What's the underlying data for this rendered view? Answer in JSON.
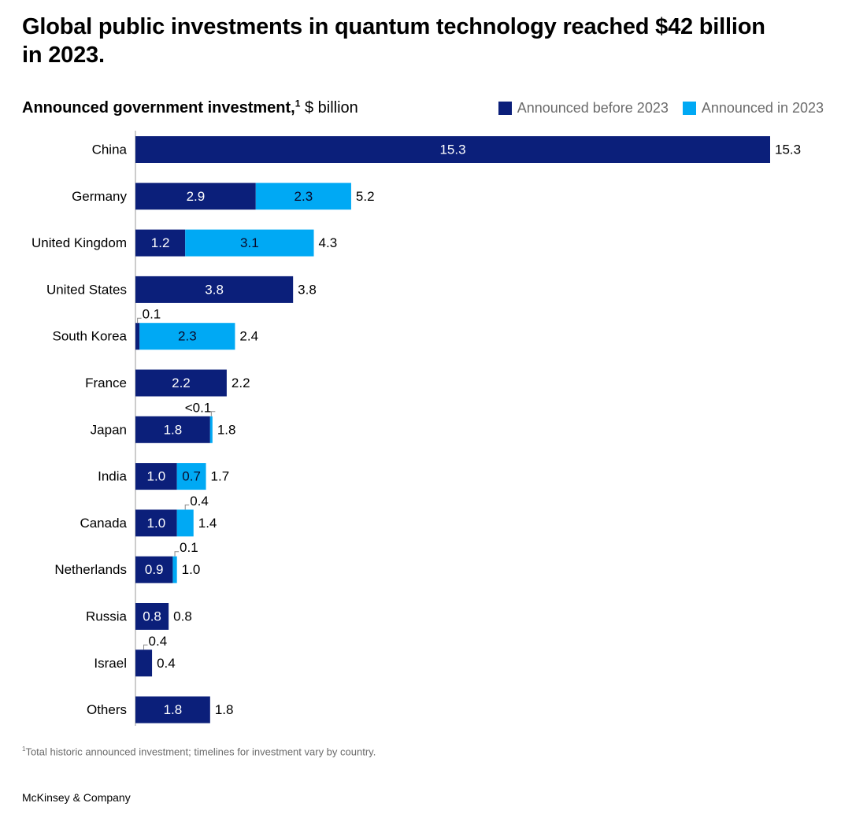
{
  "title": "Global public investments in quantum technology reached $42 billion in 2023.",
  "subtitle_bold": "Announced government investment,",
  "subtitle_footnote_marker": "1",
  "subtitle_unit": "$ billion",
  "legend": {
    "before": "Announced before 2023",
    "in": "Announced in 2023"
  },
  "colors": {
    "before": "#0b1f7a",
    "in": "#00a9f4"
  },
  "footnote_marker": "1",
  "footnote": "Total historic announced investment; timelines for investment vary by country.",
  "brand": "McKinsey & Company",
  "chart_data": {
    "type": "bar",
    "orientation": "horizontal",
    "stacked": true,
    "categories": [
      "China",
      "Germany",
      "United Kingdom",
      "United States",
      "South Korea",
      "France",
      "Japan",
      "India",
      "Canada",
      "Netherlands",
      "Russia",
      "Israel",
      "Others"
    ],
    "series": [
      {
        "name": "Announced before 2023",
        "values": [
          15.3,
          2.9,
          1.2,
          3.8,
          0.1,
          2.2,
          1.8,
          1.0,
          1.0,
          0.9,
          0.8,
          0.4,
          1.8
        ],
        "labels": [
          "15.3",
          "2.9",
          "1.2",
          "3.8",
          "0.1",
          "2.2",
          "1.8",
          "1.0",
          "1.0",
          "0.9",
          "0.8",
          "0.4",
          "1.8"
        ]
      },
      {
        "name": "Announced in 2023",
        "values": [
          0,
          2.3,
          3.1,
          0,
          2.3,
          0,
          0.05,
          0.7,
          0.4,
          0.1,
          0,
          0,
          0
        ],
        "labels": [
          "",
          "2.3",
          "3.1",
          "",
          "2.3",
          "",
          "<0.1",
          "0.7",
          "0.4",
          "0.1",
          "",
          "",
          ""
        ]
      }
    ],
    "totals": [
      "15.3",
      "5.2",
      "4.3",
      "3.8",
      "2.4",
      "2.2",
      "1.8",
      "1.7",
      "1.4",
      "1.0",
      "0.8",
      "0.4",
      "1.8"
    ],
    "xlim": [
      0,
      15.3
    ],
    "grid": false,
    "legend_position": "top-right"
  }
}
